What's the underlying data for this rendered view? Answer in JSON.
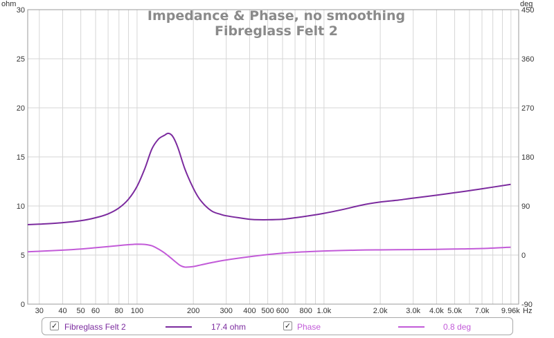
{
  "chart_data": {
    "type": "line",
    "title": "Impedance & Phase, no smoothing",
    "subtitle": "Fibreglass Felt 2",
    "x_unit": "Hz",
    "x_scale": "log",
    "xlim": [
      26,
      11000
    ],
    "y_left_unit": "ohm",
    "ylim_left": [
      0,
      30
    ],
    "y_right_unit": "deg",
    "ylim_right": [
      -90,
      450
    ],
    "grid": true,
    "x_ticks": [
      {
        "v": 30,
        "label": "30"
      },
      {
        "v": 40,
        "label": "40"
      },
      {
        "v": 50,
        "label": "50"
      },
      {
        "v": 60,
        "label": "60"
      },
      {
        "v": 80,
        "label": "80"
      },
      {
        "v": 100,
        "label": "100"
      },
      {
        "v": 200,
        "label": "200"
      },
      {
        "v": 300,
        "label": "300"
      },
      {
        "v": 400,
        "label": "400"
      },
      {
        "v": 500,
        "label": "500"
      },
      {
        "v": 600,
        "label": "600"
      },
      {
        "v": 800,
        "label": "800"
      },
      {
        "v": 1000,
        "label": "1.0k"
      },
      {
        "v": 2000,
        "label": "2.0k"
      },
      {
        "v": 3000,
        "label": "3.0k"
      },
      {
        "v": 4000,
        "label": "4.0k"
      },
      {
        "v": 5000,
        "label": "5.0k"
      },
      {
        "v": 7000,
        "label": "7.0k"
      },
      {
        "v": 9960,
        "label": "9.96k"
      }
    ],
    "y_left_ticks": [
      0,
      5,
      10,
      15,
      20,
      25,
      30
    ],
    "y_right_ticks": [
      -90,
      0,
      90,
      180,
      270,
      360,
      450
    ],
    "series": [
      {
        "name": "Fibreglass Felt 2",
        "axis": "left",
        "color": "#7b2a9e",
        "readout": "17.4 ohm",
        "x": [
          26,
          30,
          40,
          50,
          60,
          70,
          80,
          90,
          100,
          110,
          120,
          130,
          140,
          147,
          155,
          165,
          180,
          200,
          220,
          250,
          280,
          300,
          350,
          400,
          450,
          500,
          600,
          700,
          800,
          1000,
          1300,
          1600,
          2000,
          2500,
          3000,
          4000,
          5000,
          7000,
          9960
        ],
        "y": [
          8.1,
          8.15,
          8.3,
          8.5,
          8.8,
          9.2,
          9.8,
          10.7,
          12.0,
          13.8,
          15.8,
          16.8,
          17.2,
          17.4,
          17.1,
          16.0,
          13.8,
          11.8,
          10.5,
          9.5,
          9.15,
          9.0,
          8.8,
          8.65,
          8.6,
          8.6,
          8.65,
          8.8,
          8.95,
          9.25,
          9.7,
          10.1,
          10.4,
          10.6,
          10.8,
          11.1,
          11.35,
          11.75,
          12.2
        ]
      },
      {
        "name": "Phase",
        "axis": "right",
        "color": "#c25ad8",
        "readout": "0.8 deg",
        "x": [
          26,
          30,
          40,
          50,
          60,
          70,
          80,
          90,
          100,
          110,
          120,
          130,
          140,
          150,
          160,
          170,
          180,
          200,
          220,
          250,
          300,
          400,
          500,
          600,
          700,
          800,
          1000,
          1500,
          2000,
          3000,
          4000,
          5000,
          7000,
          9960
        ],
        "y": [
          6.0,
          7.0,
          9.0,
          11.0,
          13.5,
          15.5,
          17.5,
          19.0,
          20.0,
          19.5,
          17.0,
          11.0,
          4.0,
          -4.0,
          -12.0,
          -19.0,
          -22.0,
          -21.0,
          -18.0,
          -14.0,
          -9.0,
          -3.0,
          1.0,
          3.5,
          5.0,
          6.0,
          7.5,
          9.0,
          9.5,
          10.0,
          10.5,
          11.0,
          12.0,
          14.5
        ]
      }
    ]
  },
  "legend": {
    "items": [
      {
        "name": "Fibreglass Felt 2",
        "readout": "17.4 ohm",
        "checked": "✓"
      },
      {
        "name": "Phase",
        "readout": "0.8 deg",
        "checked": "✓"
      }
    ]
  }
}
